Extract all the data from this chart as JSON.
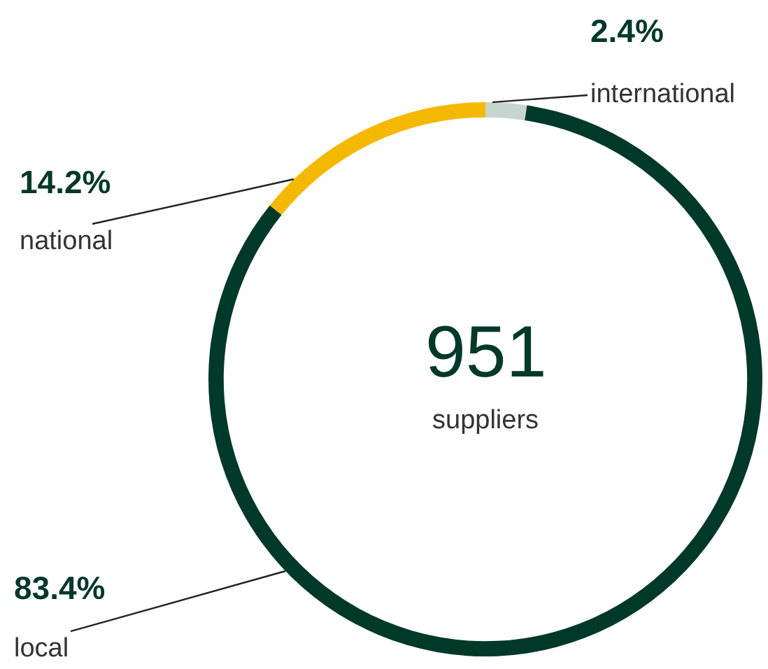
{
  "chart_data": {
    "type": "donut",
    "categories": [
      "international",
      "local",
      "national"
    ],
    "values": [
      2.4,
      83.4,
      14.2
    ],
    "colors": [
      "#c6d6cd",
      "#00382a",
      "#f5b800"
    ],
    "value_labels": [
      "2.4%",
      "83.4%",
      "14.2%"
    ],
    "annotations": [
      "951",
      "suppliers"
    ],
    "legend": false
  }
}
